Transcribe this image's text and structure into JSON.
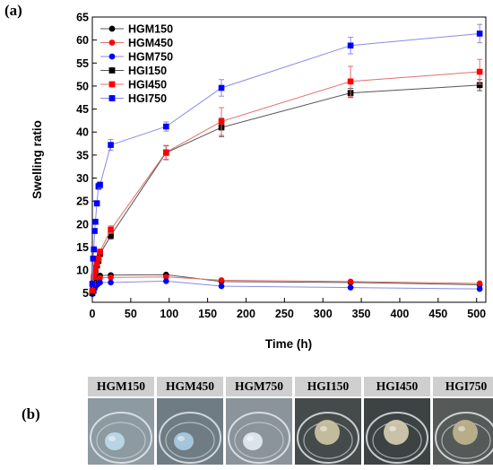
{
  "panel_a_label": "(a)",
  "panel_b_label": "(b)",
  "photos": {
    "labels": [
      "HGM150",
      "HGM450",
      "HGM750",
      "HGI150",
      "HGI450",
      "HGI750"
    ],
    "gel_colors": [
      "#bcd8e8",
      "#a7c9df",
      "#dfe8ee",
      "#c9c2a0",
      "#d2c9ae",
      "#bdb28c"
    ],
    "background_colors": [
      "#8e9aa1",
      "#6f7c84",
      "#8a949a",
      "#454a4a",
      "#3d4242",
      "#555a58"
    ]
  },
  "chart_data": {
    "type": "scatter",
    "title": "",
    "xlabel": "Time (h)",
    "ylabel": "Swelling ratio",
    "xlim": [
      0,
      512
    ],
    "ylim": [
      3,
      65
    ],
    "xticks": [
      0,
      50,
      100,
      150,
      200,
      250,
      300,
      350,
      400,
      450,
      500
    ],
    "yticks": [
      5,
      10,
      15,
      20,
      25,
      30,
      35,
      40,
      45,
      50,
      55,
      60,
      65
    ],
    "legend_position": "top-left",
    "grid": false,
    "series": [
      {
        "name": "HGM150",
        "marker": "circle",
        "color": "#000000",
        "x": [
          0,
          1,
          2,
          3,
          4,
          6,
          8,
          10,
          24,
          96,
          168,
          336,
          504
        ],
        "y": [
          5.2,
          5.8,
          6.3,
          6.8,
          7.3,
          8.0,
          8.5,
          8.8,
          8.9,
          9.0,
          7.5,
          7.3,
          6.8
        ],
        "err": null
      },
      {
        "name": "HGM450",
        "marker": "circle",
        "color": "#ff0000",
        "x": [
          0,
          1,
          2,
          3,
          4,
          6,
          8,
          10,
          24,
          96,
          168,
          336,
          504
        ],
        "y": [
          5.0,
          5.5,
          6.0,
          6.5,
          7.0,
          7.6,
          8.0,
          8.3,
          8.4,
          8.5,
          7.8,
          7.5,
          7.1
        ],
        "err": null
      },
      {
        "name": "HGM750",
        "marker": "circle",
        "color": "#0000ff",
        "x": [
          0,
          1,
          2,
          3,
          4,
          6,
          8,
          10,
          24,
          96,
          168,
          336,
          504
        ],
        "y": [
          4.8,
          5.2,
          5.6,
          6.0,
          6.4,
          6.8,
          7.1,
          7.3,
          7.3,
          7.6,
          6.5,
          6.2,
          5.9
        ],
        "err": null
      },
      {
        "name": "HGI150",
        "marker": "square",
        "color": "#000000",
        "x": [
          0,
          1,
          2,
          3,
          4,
          6,
          8,
          10,
          24,
          96,
          168,
          336,
          504
        ],
        "y": [
          5.0,
          6.5,
          8.0,
          9.0,
          10.0,
          11.0,
          12.0,
          13.5,
          17.5,
          35.5,
          41.0,
          48.5,
          50.2
        ],
        "err": [
          0,
          0.3,
          0.3,
          0.3,
          0.3,
          0.4,
          0.4,
          0.5,
          0.8,
          1.5,
          2.0,
          1.0,
          1.2
        ]
      },
      {
        "name": "HGI450",
        "marker": "square",
        "color": "#ff0000",
        "x": [
          0,
          1,
          2,
          3,
          4,
          6,
          8,
          10,
          24,
          96,
          168,
          336,
          504
        ],
        "y": [
          5.5,
          7.0,
          8.5,
          9.5,
          10.5,
          11.5,
          12.5,
          14.0,
          18.8,
          35.6,
          42.3,
          51.0,
          53.1
        ],
        "err": [
          0,
          0.3,
          0.3,
          0.3,
          0.3,
          0.4,
          0.4,
          0.5,
          0.8,
          1.5,
          3.0,
          3.3,
          2.7
        ]
      },
      {
        "name": "HGI750",
        "marker": "square",
        "color": "#0000ff",
        "x": [
          0,
          1,
          2,
          3,
          4,
          6,
          8,
          10,
          24,
          96,
          168,
          336,
          504
        ],
        "y": [
          7.0,
          12.5,
          14.5,
          18.5,
          20.5,
          24.5,
          28.2,
          28.5,
          37.2,
          41.2,
          49.6,
          58.8,
          61.4
        ],
        "err": [
          0,
          0.4,
          0.4,
          0.5,
          0.5,
          0.6,
          0.7,
          0.7,
          1.2,
          1.0,
          1.8,
          1.8,
          2.0
        ]
      }
    ]
  }
}
